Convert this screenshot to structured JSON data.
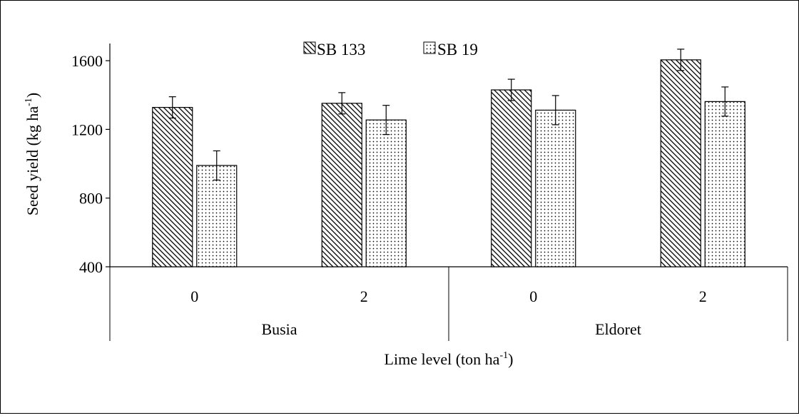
{
  "chart_data": {
    "type": "bar",
    "groups": [
      {
        "label": "Busia",
        "categories": [
          "0",
          "2"
        ]
      },
      {
        "label": "Eldoret",
        "categories": [
          "0",
          "2"
        ]
      }
    ],
    "series": [
      {
        "name": "SB 133",
        "pattern": "diagonal-hatch",
        "values": [
          1328,
          1352,
          1430,
          1605
        ],
        "errors": [
          62,
          62,
          62,
          62
        ]
      },
      {
        "name": "SB 19",
        "pattern": "dots",
        "values": [
          990,
          1255,
          1312,
          1362
        ],
        "errors": [
          85,
          85,
          85,
          85
        ]
      }
    ],
    "ylabel_text": "Seed yield (kg ha",
    "ylabel_sup": "-1",
    "ylabel_end": ")",
    "xlabel_text": "Lime level (ton ha",
    "xlabel_sup": "-1",
    "xlabel_end": ")",
    "yticks": [
      400,
      800,
      1200,
      1600
    ],
    "ylim": [
      400,
      1700
    ],
    "grid": false,
    "legend_position": "top-center",
    "colors": {
      "fill": "#ffffff",
      "stroke": "#000000"
    }
  }
}
